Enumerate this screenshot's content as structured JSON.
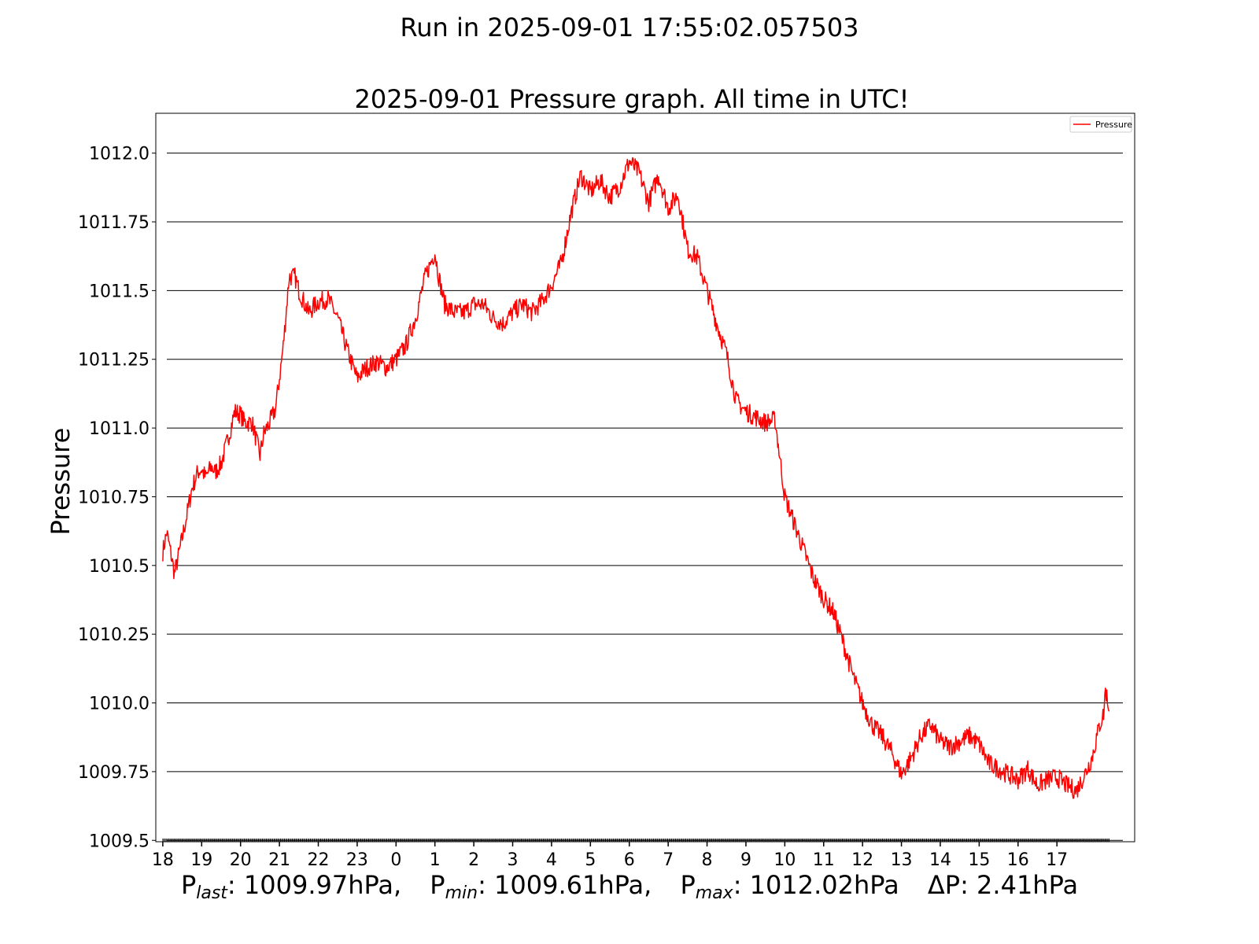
{
  "run_title": "Run in 2025-09-01 17:55:02.057503",
  "chart_data": {
    "type": "line",
    "title": "2025-09-01 Pressure graph. All time in UTC!",
    "xlabel": "",
    "ylabel": "Pressure",
    "x_tick_labels": [
      "18",
      "19",
      "20",
      "21",
      "22",
      "23",
      "0",
      "1",
      "2",
      "3",
      "4",
      "5",
      "6",
      "7",
      "8",
      "9",
      "10",
      "11",
      "12",
      "13",
      "14",
      "15",
      "16",
      "17"
    ],
    "y_ticks": [
      1009.5,
      1009.75,
      1010.0,
      1010.25,
      1010.5,
      1010.75,
      1011.0,
      1011.25,
      1011.5,
      1011.75,
      1012.0
    ],
    "y_tick_labels": [
      "1009.5",
      "1009.75",
      "1010.0",
      "1010.25",
      "1010.5",
      "1010.75",
      "1011.0",
      "1011.25",
      "1011.5",
      "1011.75",
      "1012.0"
    ],
    "xlim": [
      -0.18,
      25.0
    ],
    "ylim": [
      1009.495,
      1012.145
    ],
    "grid": "horizontal",
    "legend": "top-right",
    "series": [
      {
        "name": "Pressure",
        "color": "#ff0000",
        "x": [
          0,
          0.1,
          0.2,
          0.3,
          0.35,
          0.5,
          0.6,
          0.75,
          0.9,
          1.0,
          1.1,
          1.25,
          1.35,
          1.5,
          1.6,
          1.75,
          1.85,
          2.0,
          2.1,
          2.3,
          2.5,
          2.6,
          2.75,
          2.9,
          3.0,
          3.1,
          3.25,
          3.4,
          3.5,
          3.75,
          4.0,
          4.25,
          4.5,
          4.75,
          5.0,
          5.1,
          5.25,
          5.5,
          5.75,
          6.0,
          6.25,
          6.5,
          6.75,
          7.0,
          7.1,
          7.25,
          7.5,
          7.75,
          8.0,
          8.25,
          8.5,
          8.75,
          9.0,
          9.25,
          9.5,
          9.75,
          10.0,
          10.25,
          10.5,
          10.75,
          11.0,
          11.25,
          11.5,
          11.75,
          12.0,
          12.25,
          12.5,
          12.75,
          13.0,
          13.25,
          13.5,
          13.75,
          14.0,
          14.25,
          14.5,
          14.75,
          15.0,
          15.25,
          15.5,
          15.75,
          16.0,
          16.25,
          16.5,
          16.75,
          17.0,
          17.25,
          17.5,
          17.75,
          18.0,
          18.25,
          18.5,
          18.75,
          19.0,
          19.25,
          19.5,
          19.75,
          20.0,
          20.25,
          20.5,
          20.75,
          21.0,
          21.25,
          21.5,
          21.75,
          22.0,
          22.25,
          22.5,
          22.75,
          23.0,
          23.25,
          23.5,
          23.75,
          23.9,
          24.0,
          24.1,
          24.2,
          24.25,
          24.35
        ],
        "y": [
          1010.55,
          1010.62,
          1010.55,
          1010.47,
          1010.5,
          1010.6,
          1010.67,
          1010.78,
          1010.84,
          1010.85,
          1010.82,
          1010.86,
          1010.84,
          1010.87,
          1010.92,
          1011.0,
          1011.06,
          1011.05,
          1011.02,
          1011.02,
          1010.9,
          1010.98,
          1011.02,
          1011.07,
          1011.18,
          1011.3,
          1011.55,
          1011.55,
          1011.5,
          1011.42,
          1011.46,
          1011.47,
          1011.4,
          1011.28,
          1011.18,
          1011.2,
          1011.22,
          1011.24,
          1011.22,
          1011.25,
          1011.3,
          1011.4,
          1011.55,
          1011.64,
          1011.55,
          1011.45,
          1011.42,
          1011.42,
          1011.45,
          1011.45,
          1011.4,
          1011.38,
          1011.42,
          1011.45,
          1011.42,
          1011.46,
          1011.52,
          1011.6,
          1011.78,
          1011.92,
          1011.86,
          1011.9,
          1011.84,
          1011.88,
          1011.97,
          1011.93,
          1011.82,
          1011.92,
          1011.8,
          1011.85,
          1011.65,
          1011.62,
          1011.5,
          1011.38,
          1011.27,
          1011.1,
          1011.06,
          1011.04,
          1011.02,
          1011.03,
          1010.75,
          1010.65,
          1010.55,
          1010.45,
          1010.38,
          1010.33,
          1010.22,
          1010.1,
          1010.0,
          1009.92,
          1009.88,
          1009.82,
          1009.74,
          1009.8,
          1009.88,
          1009.92,
          1009.86,
          1009.84,
          1009.86,
          1009.88,
          1009.85,
          1009.78,
          1009.76,
          1009.74,
          1009.72,
          1009.76,
          1009.7,
          1009.72,
          1009.73,
          1009.7,
          1009.68,
          1009.75,
          1009.8,
          1009.86,
          1009.92,
          1009.96,
          1010.05,
          1009.97
        ]
      }
    ]
  },
  "stats": {
    "p_last_sym": "P",
    "p_last_sub": "last",
    "p_last_val": ": 1009.97hPa,",
    "p_min_sym": "P",
    "p_min_sub": "min",
    "p_min_val": ": 1009.61hPa,",
    "p_max_sym": "P",
    "p_max_sub": "max",
    "p_max_val": ": 1012.02hPa",
    "delta_text": "ΔP: 2.41hPa"
  }
}
